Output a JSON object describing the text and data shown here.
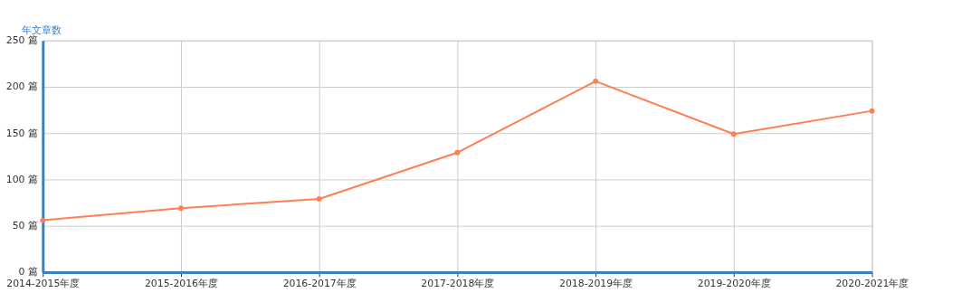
{
  "chart_data": {
    "type": "line",
    "ylabel": "年文章数",
    "categories": [
      "2014-2015年度",
      "2015-2016年度",
      "2016-2017年度",
      "2017-2018年度",
      "2018-2019年度",
      "2019-2020年度",
      "2020-2021年度"
    ],
    "series": [
      {
        "color": "#ff7f50",
        "values": [
          56,
          69,
          79,
          129,
          206,
          149,
          174
        ]
      }
    ],
    "ylim": [
      0,
      250
    ],
    "yticks": [
      {
        "value": 0,
        "label": "0 篇"
      },
      {
        "value": 50,
        "label": "50 篇"
      },
      {
        "value": 100,
        "label": "100 篇"
      },
      {
        "value": 150,
        "label": "150 篇"
      },
      {
        "value": 200,
        "label": "200 篇"
      },
      {
        "value": 250,
        "label": "250 篇"
      }
    ],
    "grid": true,
    "marker": "circle",
    "line_style": "solid"
  }
}
